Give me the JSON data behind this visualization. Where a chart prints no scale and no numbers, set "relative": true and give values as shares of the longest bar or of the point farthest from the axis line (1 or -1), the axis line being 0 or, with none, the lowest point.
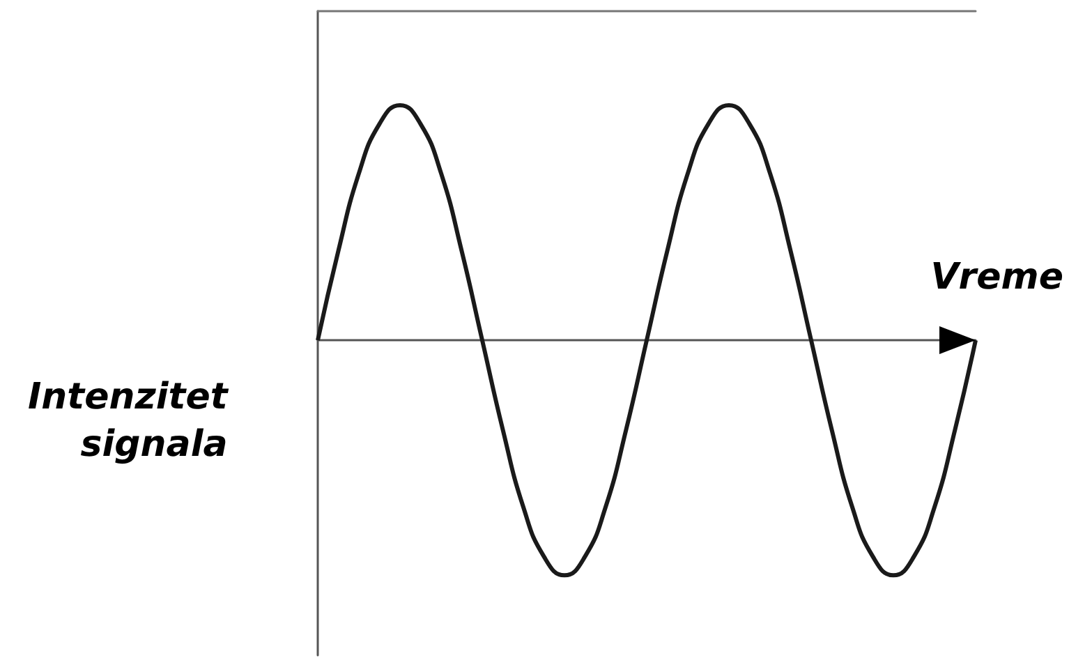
{
  "chart_data": {
    "type": "line",
    "relative": true,
    "xlabel": "Vreme",
    "ylabel": "Intenzitet\nsignala",
    "categories": [
      null,
      null,
      null,
      null,
      null,
      null,
      null,
      null,
      null,
      null,
      null,
      null,
      null,
      null,
      null,
      null,
      null,
      null,
      null,
      null,
      null,
      null,
      null,
      null,
      null,
      null,
      null,
      null,
      null,
      null,
      null,
      null,
      null
    ],
    "series": [
      {
        "color": "#1a1a1a",
        "values": [
          0,
          0.38,
          0.71,
          0.92,
          1,
          0.92,
          0.71,
          0.38,
          0,
          -0.38,
          -0.71,
          -0.92,
          -1,
          -0.92,
          -0.71,
          -0.38,
          0,
          0.38,
          0.71,
          0.92,
          1,
          0.92,
          0.71,
          0.38,
          0,
          -0.38,
          -0.71,
          -0.92,
          -1,
          -0.92,
          -0.71,
          -0.38,
          0
        ]
      }
    ],
    "marker": "none",
    "line_style": "solid",
    "grid": false,
    "tick_labels": false
  }
}
